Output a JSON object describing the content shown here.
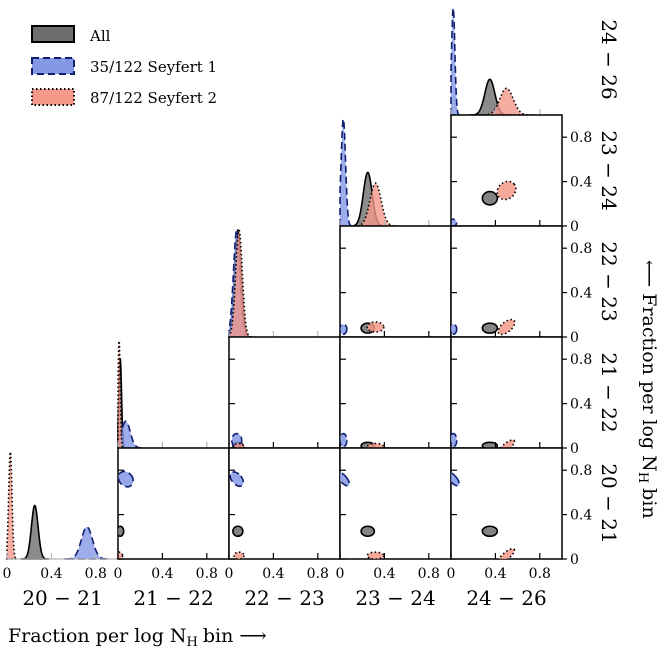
{
  "chart_data": {
    "type": "corner",
    "bins": [
      "20 − 21",
      "21 − 22",
      "22 − 23",
      "23 − 24",
      "24 − 26"
    ],
    "x_ticks": [
      0,
      0.4,
      0.8
    ],
    "x_tick_labels": [
      "0",
      "0.4",
      "0.8"
    ],
    "y_ticks": [
      0,
      0.4,
      0.8
    ],
    "y_tick_labels": [
      "0",
      "0.4",
      "0.8"
    ],
    "axis_range": [
      0,
      1
    ],
    "xlabel": "Fraction per log N",
    "xlabel_sub": "H",
    "xlabel_tail": "bin ⟶",
    "ylabel": "⟵ Fraction per log N",
    "ylabel_sub": "H",
    "ylabel_tail": "bin",
    "series": [
      {
        "name": "All",
        "fill": "#6e6e6e",
        "edge": "#000000",
        "style": "solid",
        "means": [
          0.25,
          0.02,
          0.08,
          0.25,
          0.35
        ],
        "sds": [
          0.03,
          0.012,
          0.03,
          0.04,
          0.045
        ]
      },
      {
        "name": "35/122 Seyfert 1",
        "fill": "#8499e6",
        "edge": "#101f70",
        "style": "dashed",
        "means": [
          0.72,
          0.07,
          0.07,
          0.03,
          0.02
        ],
        "sds": [
          0.05,
          0.04,
          0.03,
          0.02,
          0.015
        ]
      },
      {
        "name": "87/122 Seyfert 2",
        "fill": "#f4998a",
        "edge": "#000000",
        "style": "dotted",
        "means": [
          0.03,
          0.01,
          0.09,
          0.32,
          0.5
        ],
        "sds": [
          0.015,
          0.01,
          0.03,
          0.05,
          0.06
        ]
      }
    ]
  }
}
